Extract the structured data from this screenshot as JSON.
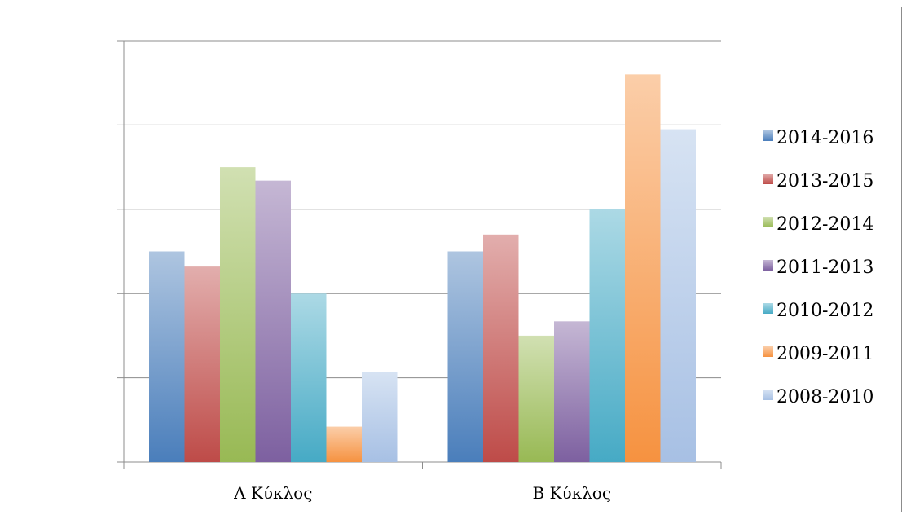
{
  "chart_data": {
    "type": "bar",
    "categories": [
      "Α Κύκλος",
      "Β Κύκλος"
    ],
    "series": [
      {
        "name": "2014-2016",
        "values": [
          2.5,
          2.5
        ],
        "color": "#4a7ebb"
      },
      {
        "name": "2013-2015",
        "values": [
          2.32,
          2.7
        ],
        "color": "#be4b48"
      },
      {
        "name": "2012-2014",
        "values": [
          3.5,
          1.5
        ],
        "color": "#98b954"
      },
      {
        "name": "2011-2013",
        "values": [
          3.34,
          1.67
        ],
        "color": "#7d60a0"
      },
      {
        "name": "2010-2012",
        "values": [
          2.0,
          3.0
        ],
        "color": "#46aac5"
      },
      {
        "name": "2009-2011",
        "values": [
          0.42,
          4.6
        ],
        "color": "#f69240"
      },
      {
        "name": "2008-2010",
        "values": [
          1.07,
          3.95
        ],
        "color": "#a7c0e4"
      }
    ],
    "title": "",
    "xlabel": "",
    "ylabel": "",
    "ylim": [
      0,
      5
    ],
    "y_tick_labels_visible": false,
    "grid": true,
    "legend_position": "right"
  }
}
